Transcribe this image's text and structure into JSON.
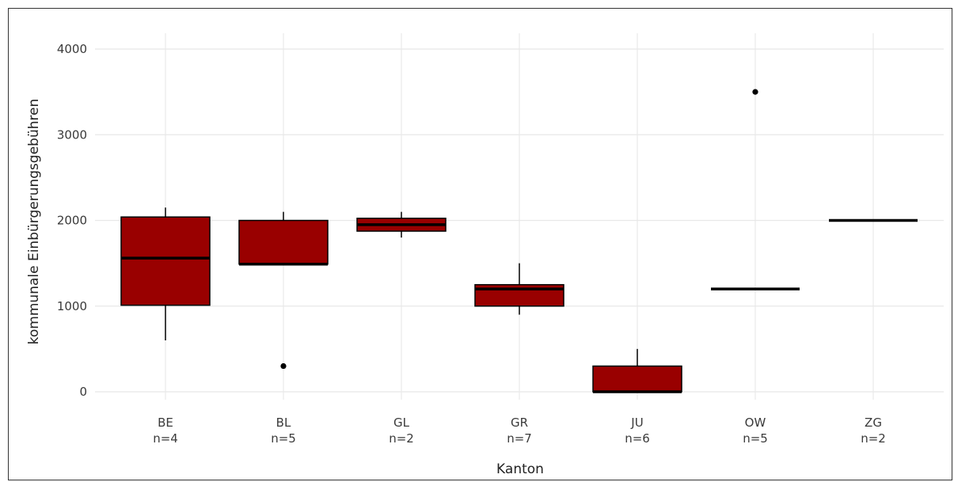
{
  "chart_data": {
    "type": "boxplot",
    "xlabel": "Kanton",
    "ylabel": "kommunale Einbürgerungsgebühren",
    "ylim": [
      -350,
      4150
    ],
    "yticks": [
      0,
      1000,
      2000,
      3000,
      4000
    ],
    "grid": true,
    "colors": {
      "box_fill": "#990000",
      "box_stroke": "#000000",
      "grid": "#e8e8e8"
    },
    "boxes": [
      {
        "category": "BE",
        "n_label": "n=4",
        "whisker_low": 600,
        "q1": 1010,
        "median": 1560,
        "q3": 2040,
        "whisker_high": 2150,
        "outliers": []
      },
      {
        "category": "BL",
        "n_label": "n=5",
        "whisker_low": 1490,
        "q1": 1490,
        "median": 1490,
        "q3": 2000,
        "whisker_high": 2100,
        "outliers": [
          300
        ]
      },
      {
        "category": "GL",
        "n_label": "n=2",
        "whisker_low": 1800,
        "q1": 1875,
        "median": 1950,
        "q3": 2025,
        "whisker_high": 2100,
        "outliers": []
      },
      {
        "category": "GR",
        "n_label": "n=7",
        "whisker_low": 900,
        "q1": 1000,
        "median": 1200,
        "q3": 1250,
        "whisker_high": 1500,
        "outliers": []
      },
      {
        "category": "JU",
        "n_label": "n=6",
        "whisker_low": 0,
        "q1": 0,
        "median": 0,
        "q3": 300,
        "whisker_high": 500,
        "outliers": []
      },
      {
        "category": "OW",
        "n_label": "n=5",
        "whisker_low": 1200,
        "q1": 1200,
        "median": 1200,
        "q3": 1200,
        "whisker_high": 1200,
        "outliers": [
          3500
        ]
      },
      {
        "category": "ZG",
        "n_label": "n=2",
        "whisker_low": 2000,
        "q1": 2000,
        "median": 2000,
        "q3": 2000,
        "whisker_high": 2000,
        "outliers": []
      }
    ]
  }
}
